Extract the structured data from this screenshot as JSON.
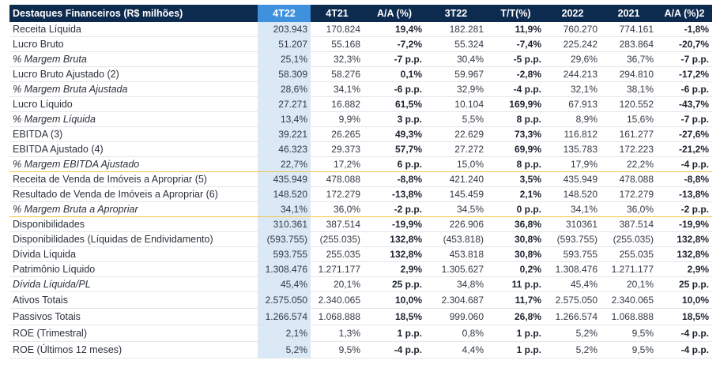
{
  "header": [
    "Destaques Financeiros (R$ milhões)",
    "4T22",
    "4T21",
    "A/A (%)",
    "3T22",
    "T/T(%)",
    "2022",
    "2021",
    "A/A (%)2"
  ],
  "rows": [
    {
      "label": "Receita Líquida",
      "italic": false,
      "values": [
        "203.943",
        "170.824",
        "19,4%",
        "182.281",
        "11,9%",
        "760.270",
        "774.161",
        "-1,8%"
      ]
    },
    {
      "label": "Lucro Bruto",
      "italic": false,
      "values": [
        "51.207",
        "55.168",
        "-7,2%",
        "55.324",
        "-7,4%",
        "225.242",
        "283.864",
        "-20,7%"
      ]
    },
    {
      "label": "% Margem Bruta",
      "italic": true,
      "values": [
        "25,1%",
        "32,3%",
        "-7 p.p.",
        "30,4%",
        "-5 p.p.",
        "29,6%",
        "36,7%",
        "-7 p.p."
      ]
    },
    {
      "label": "Lucro Bruto Ajustado (2)",
      "italic": false,
      "values": [
        "58.309",
        "58.276",
        "0,1%",
        "59.967",
        "-2,8%",
        "244.213",
        "294.810",
        "-17,2%"
      ]
    },
    {
      "label": "% Margem Bruta Ajustada",
      "italic": true,
      "values": [
        "28,6%",
        "34,1%",
        "-6 p.p.",
        "32,9%",
        "-4 p.p.",
        "32,1%",
        "38,1%",
        "-6 p.p."
      ]
    },
    {
      "label": "Lucro Líquido",
      "italic": false,
      "values": [
        "27.271",
        "16.882",
        "61,5%",
        "10.104",
        "169,9%",
        "67.913",
        "120.552",
        "-43,7%"
      ]
    },
    {
      "label": "% Margem Líquida",
      "italic": true,
      "values": [
        "13,4%",
        "9,9%",
        "3 p.p.",
        "5,5%",
        "8 p.p.",
        "8,9%",
        "15,6%",
        "-7 p.p."
      ]
    },
    {
      "label": "EBITDA (3)",
      "italic": false,
      "values": [
        "39.221",
        "26.265",
        "49,3%",
        "22.629",
        "73,3%",
        "116.812",
        "161.277",
        "-27,6%"
      ]
    },
    {
      "label": "EBITDA Ajustado (4)",
      "italic": false,
      "values": [
        "46.323",
        "29.373",
        "57,7%",
        "27.272",
        "69,9%",
        "135.783",
        "172.223",
        "-21,2%"
      ]
    },
    {
      "label": "% Margem EBITDA Ajustado",
      "italic": true,
      "values": [
        "22,7%",
        "17,2%",
        "6 p.p.",
        "15,0%",
        "8 p.p.",
        "17,9%",
        "22,2%",
        "-4 p.p."
      ]
    },
    {
      "label": "Receita de Venda de Imóveis a Apropriar (5)",
      "italic": false,
      "values": [
        "435.949",
        "478.088",
        "-8,8%",
        "421.240",
        "3,5%",
        "435.949",
        "478.088",
        "-8,8%"
      ]
    },
    {
      "label": "Resultado de Venda de Imóveis a Apropriar (6)",
      "italic": false,
      "values": [
        "148.520",
        "172.279",
        "-13,8%",
        "145.459",
        "2,1%",
        "148.520",
        "172.279",
        "-13,8%"
      ]
    },
    {
      "label": "% Margem Bruta a Apropriar",
      "italic": true,
      "values": [
        "34,1%",
        "36,0%",
        "-2 p.p.",
        "34,5%",
        "0 p.p.",
        "34,1%",
        "36,0%",
        "-2 p.p."
      ]
    },
    {
      "label": "Disponibilidades",
      "italic": false,
      "values": [
        "310.361",
        "387.514",
        "-19,9%",
        "226.906",
        "36,8%",
        "310361",
        "387.514",
        "-19,9%"
      ]
    },
    {
      "label": "Disponibilidades (Líquidas de Endividamento)",
      "italic": false,
      "values": [
        "(593.755)",
        "(255.035)",
        "132,8%",
        "(453.818)",
        "30,8%",
        "(593.755)",
        "(255.035)",
        "132,8%"
      ]
    },
    {
      "label": "Dívida Líquida",
      "italic": false,
      "values": [
        "593.755",
        "255.035",
        "132,8%",
        "453.818",
        "30,8%",
        "593.755",
        "255.035",
        "132,8%"
      ]
    },
    {
      "label": "Patrimônio Líquido",
      "italic": false,
      "values": [
        "1.308.476",
        "1.271.177",
        "2,9%",
        "1.305.627",
        "0,2%",
        "1.308.476",
        "1.271.177",
        "2,9%"
      ]
    },
    {
      "label": "Dívida Líquida/PL",
      "italic": true,
      "values": [
        "45,4%",
        "20,1%",
        "25 p.p.",
        "34,8%",
        "11 p.p.",
        "45,4%",
        "20,1%",
        "25 p.p."
      ]
    },
    {
      "label": "Ativos Totais",
      "italic": false,
      "values": [
        "2.575.050",
        "2.340.065",
        "10,0%",
        "2.304.687",
        "11,7%",
        "2.575.050",
        "2.340.065",
        "10,0%"
      ]
    },
    {
      "label": "Passivos Totais",
      "italic": false,
      "values": [
        "1.266.574",
        "1.068.888",
        "18,5%",
        "999.060",
        "26,8%",
        "1.266.574",
        "1.068.888",
        "18,5%"
      ]
    },
    {
      "label": "ROE (Trimestral)",
      "italic": false,
      "values": [
        "2,1%",
        "1,3%",
        "1 p.p.",
        "0,8%",
        "1 p.p.",
        "5,2%",
        "9,5%",
        "-4 p.p."
      ]
    },
    {
      "label": "ROE (Últimos 12 meses)",
      "italic": false,
      "values": [
        "5,2%",
        "9,5%",
        "-4 p.p.",
        "4,4%",
        "1 p.p.",
        "5,2%",
        "9,5%",
        "-4 p.p."
      ]
    }
  ]
}
